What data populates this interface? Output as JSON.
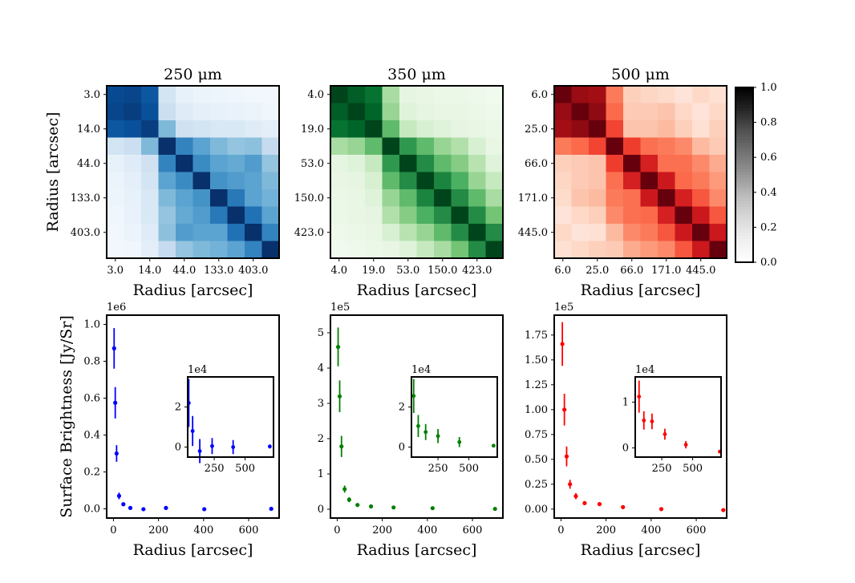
{
  "colors": {
    "cmap_250": "Blues",
    "cmap_350": "Greens",
    "cmap_500": "Reds",
    "series_250": "#0000ff",
    "series_350": "#008000",
    "series_500": "#ff0000",
    "colorbar": "Greys"
  },
  "chart_data": [
    {
      "type": "heatmap",
      "title": "250 μm",
      "xlabel": "Radius [arcsec]",
      "ylabel": "Radius [arcsec]",
      "tick_labels": [
        "3.0",
        "14.0",
        "44.0",
        "133.0",
        "403.0"
      ],
      "cmap": "Blues",
      "matrix": [
        [
          0.9,
          0.92,
          0.85,
          0.18,
          0.08,
          0.06,
          0.05,
          0.04,
          0.03,
          0.03
        ],
        [
          0.92,
          0.95,
          0.88,
          0.22,
          0.12,
          0.09,
          0.08,
          0.07,
          0.06,
          0.04
        ],
        [
          0.85,
          0.88,
          0.95,
          0.45,
          0.2,
          0.18,
          0.15,
          0.15,
          0.12,
          0.1
        ],
        [
          0.18,
          0.22,
          0.45,
          1.0,
          0.68,
          0.55,
          0.45,
          0.4,
          0.42,
          0.25
        ],
        [
          0.08,
          0.12,
          0.2,
          0.68,
          1.0,
          0.65,
          0.55,
          0.52,
          0.58,
          0.4
        ],
        [
          0.06,
          0.09,
          0.18,
          0.55,
          0.65,
          1.0,
          0.62,
          0.58,
          0.55,
          0.45
        ],
        [
          0.05,
          0.08,
          0.15,
          0.45,
          0.55,
          0.62,
          1.0,
          0.72,
          0.55,
          0.48
        ],
        [
          0.04,
          0.07,
          0.15,
          0.4,
          0.52,
          0.58,
          0.72,
          1.0,
          0.75,
          0.55
        ],
        [
          0.03,
          0.06,
          0.12,
          0.42,
          0.58,
          0.55,
          0.55,
          0.75,
          1.0,
          0.68
        ],
        [
          0.03,
          0.04,
          0.1,
          0.25,
          0.4,
          0.45,
          0.48,
          0.55,
          0.68,
          1.0
        ]
      ]
    },
    {
      "type": "heatmap",
      "title": "350 μm",
      "xlabel": "Radius [arcsec]",
      "tick_labels": [
        "4.0",
        "19.0",
        "53.0",
        "150.0",
        "423.0"
      ],
      "cmap": "Greens",
      "matrix": [
        [
          1.0,
          0.92,
          0.85,
          0.35,
          0.12,
          0.1,
          0.08,
          0.08,
          0.06,
          0.04
        ],
        [
          0.92,
          1.0,
          0.9,
          0.4,
          0.15,
          0.12,
          0.1,
          0.1,
          0.08,
          0.06
        ],
        [
          0.85,
          0.9,
          1.0,
          0.55,
          0.25,
          0.18,
          0.15,
          0.12,
          0.1,
          0.08
        ],
        [
          0.35,
          0.4,
          0.55,
          1.0,
          0.7,
          0.55,
          0.4,
          0.32,
          0.18,
          0.1
        ],
        [
          0.12,
          0.15,
          0.25,
          0.7,
          1.0,
          0.75,
          0.55,
          0.45,
          0.3,
          0.15
        ],
        [
          0.1,
          0.12,
          0.18,
          0.55,
          0.75,
          1.0,
          0.78,
          0.6,
          0.4,
          0.25
        ],
        [
          0.08,
          0.1,
          0.15,
          0.4,
          0.55,
          0.78,
          1.0,
          0.75,
          0.55,
          0.35
        ],
        [
          0.08,
          0.1,
          0.12,
          0.32,
          0.45,
          0.6,
          0.75,
          1.0,
          0.75,
          0.5
        ],
        [
          0.06,
          0.08,
          0.1,
          0.18,
          0.3,
          0.4,
          0.55,
          0.75,
          1.0,
          0.75
        ],
        [
          0.04,
          0.06,
          0.08,
          0.1,
          0.15,
          0.25,
          0.35,
          0.5,
          0.75,
          1.0
        ]
      ]
    },
    {
      "type": "heatmap",
      "title": "500 μm",
      "xlabel": "Radius [arcsec]",
      "tick_labels": [
        "6.0",
        "25.0",
        "66.0",
        "171.0",
        "445.0"
      ],
      "cmap": "Reds",
      "matrix": [
        [
          1.0,
          0.9,
          0.88,
          0.45,
          0.18,
          0.16,
          0.14,
          0.1,
          0.15,
          0.12
        ],
        [
          0.9,
          1.0,
          0.92,
          0.5,
          0.2,
          0.2,
          0.22,
          0.15,
          0.1,
          0.15
        ],
        [
          0.88,
          0.92,
          1.0,
          0.6,
          0.22,
          0.22,
          0.25,
          0.18,
          0.12,
          0.18
        ],
        [
          0.45,
          0.5,
          0.6,
          1.0,
          0.62,
          0.48,
          0.45,
          0.4,
          0.25,
          0.2
        ],
        [
          0.18,
          0.2,
          0.22,
          0.62,
          1.0,
          0.72,
          0.48,
          0.48,
          0.4,
          0.3
        ],
        [
          0.16,
          0.2,
          0.22,
          0.48,
          0.72,
          1.0,
          0.75,
          0.5,
          0.45,
          0.35
        ],
        [
          0.14,
          0.22,
          0.25,
          0.45,
          0.48,
          0.75,
          1.0,
          0.72,
          0.55,
          0.4
        ],
        [
          0.1,
          0.15,
          0.18,
          0.4,
          0.48,
          0.5,
          0.72,
          1.0,
          0.75,
          0.55
        ],
        [
          0.15,
          0.1,
          0.12,
          0.25,
          0.4,
          0.45,
          0.55,
          0.75,
          1.0,
          0.75
        ],
        [
          0.12,
          0.15,
          0.18,
          0.2,
          0.3,
          0.35,
          0.4,
          0.55,
          0.75,
          1.0
        ]
      ]
    },
    {
      "type": "colorbar",
      "ylim": [
        0.0,
        1.0
      ],
      "tick_labels": [
        "0.0",
        "0.2",
        "0.4",
        "0.6",
        "0.8",
        "1.0"
      ],
      "ticks": [
        0.0,
        0.2,
        0.4,
        0.6,
        0.8,
        1.0
      ]
    },
    {
      "type": "scatter",
      "xlabel": "Radius [arcsec]",
      "ylabel": "Surface Brightness [Jy/Sr]",
      "offset_label": "1e6",
      "xlim": [
        -30,
        735
      ],
      "ylim": [
        -0.05,
        1.05
      ],
      "xticks": [
        0,
        200,
        400,
        600
      ],
      "xtick_labels": [
        "0",
        "200",
        "400",
        "600"
      ],
      "yticks": [
        0.0,
        0.2,
        0.4,
        0.6,
        0.8,
        1.0
      ],
      "ytick_labels": [
        "0.0",
        "0.2",
        "0.4",
        "0.6",
        "0.8",
        "1.0"
      ],
      "x": [
        3,
        8,
        14,
        25,
        44,
        75,
        133,
        233,
        403,
        700
      ],
      "y": [
        0.87,
        0.575,
        0.3,
        0.07,
        0.025,
        0.005,
        -0.002,
        0.005,
        -0.002,
        0.0
      ],
      "yerr": [
        0.11,
        0.085,
        0.045,
        0.018,
        0.008,
        0.005,
        0.004,
        0.004,
        0.003,
        0.003
      ],
      "inset": {
        "offset_label": "1e4",
        "xlim": [
          35,
          730
        ],
        "ylim": [
          -0.5,
          3.5
        ],
        "xticks": [
          250,
          500
        ],
        "xtick_labels": [
          "250",
          "500"
        ],
        "yticks": [
          0,
          2
        ],
        "ytick_labels": [
          "0",
          "2"
        ],
        "x": [
          44,
          75,
          133,
          233,
          403,
          700
        ],
        "y": [
          2.2,
          0.8,
          -0.2,
          0.05,
          0.0,
          0.03
        ],
        "yerr": [
          1.2,
          0.75,
          0.6,
          0.4,
          0.35,
          0.1
        ]
      }
    },
    {
      "type": "scatter",
      "xlabel": "Radius [arcsec]",
      "offset_label": "1e5",
      "xlim": [
        -30,
        735
      ],
      "ylim": [
        -0.25,
        5.5
      ],
      "xticks": [
        0,
        200,
        400,
        600
      ],
      "xtick_labels": [
        "0",
        "200",
        "400",
        "600"
      ],
      "yticks": [
        0,
        1,
        2,
        3,
        4,
        5
      ],
      "ytick_labels": [
        "0",
        "1",
        "2",
        "3",
        "4",
        "5"
      ],
      "x": [
        4,
        11,
        19,
        33,
        53,
        90,
        150,
        250,
        423,
        700
      ],
      "y": [
        4.6,
        3.2,
        1.78,
        0.57,
        0.27,
        0.12,
        0.08,
        0.05,
        0.03,
        0.01
      ],
      "yerr": [
        0.55,
        0.45,
        0.3,
        0.1,
        0.07,
        0.04,
        0.02,
        0.02,
        0.01,
        0.01
      ],
      "inset": {
        "offset_label": "1e4",
        "xlim": [
          35,
          730
        ],
        "ylim": [
          -0.5,
          3.5
        ],
        "xticks": [
          250,
          500
        ],
        "xtick_labels": [
          "250",
          "500"
        ],
        "yticks": [
          0,
          2
        ],
        "ytick_labels": [
          "0",
          "2"
        ],
        "x": [
          53,
          90,
          150,
          250,
          423,
          700
        ],
        "y": [
          2.55,
          1.05,
          0.75,
          0.55,
          0.25,
          0.07
        ],
        "yerr": [
          0.85,
          0.55,
          0.4,
          0.35,
          0.25,
          0.05
        ]
      }
    },
    {
      "type": "scatter",
      "xlabel": "Radius [arcsec]",
      "offset_label": "1e5",
      "xlim": [
        -30,
        735
      ],
      "ylim": [
        -0.09,
        1.95
      ],
      "xticks": [
        0,
        200,
        400,
        600
      ],
      "xtick_labels": [
        "0",
        "200",
        "400",
        "600"
      ],
      "yticks": [
        0.0,
        0.25,
        0.5,
        0.75,
        1.0,
        1.25,
        1.5,
        1.75
      ],
      "ytick_labels": [
        "0.00",
        "0.25",
        "0.50",
        "0.75",
        "1.00",
        "1.25",
        "1.50",
        "1.75"
      ],
      "x": [
        6,
        15,
        25,
        40,
        66,
        105,
        171,
        275,
        445,
        720
      ],
      "y": [
        1.66,
        1.0,
        0.53,
        0.25,
        0.13,
        0.06,
        0.05,
        0.02,
        0.0,
        -0.01
      ],
      "yerr": [
        0.22,
        0.16,
        0.1,
        0.045,
        0.03,
        0.015,
        0.01,
        0.008,
        0.006,
        0.006
      ],
      "inset": {
        "offset_label": "1e4",
        "xlim": [
          35,
          730
        ],
        "ylim": [
          -0.2,
          1.55
        ],
        "xticks": [
          250,
          500
        ],
        "xtick_labels": [
          "250",
          "500"
        ],
        "yticks": [
          0,
          1
        ],
        "ytick_labels": [
          "0",
          "1"
        ],
        "x": [
          66,
          105,
          171,
          275,
          445,
          720
        ],
        "y": [
          1.12,
          0.6,
          0.58,
          0.3,
          0.07,
          -0.08
        ],
        "yerr": [
          0.35,
          0.2,
          0.17,
          0.12,
          0.08,
          0.02
        ]
      }
    }
  ]
}
